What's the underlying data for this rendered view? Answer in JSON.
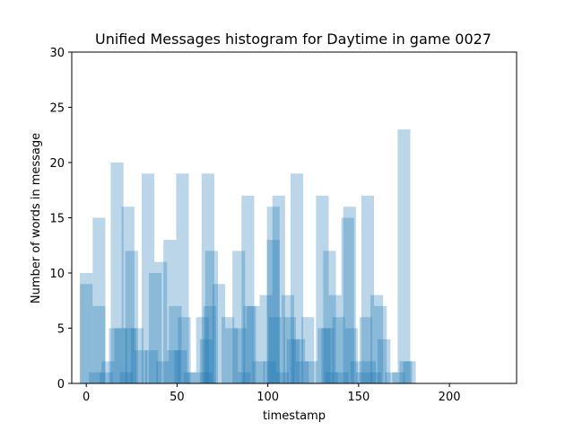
{
  "chart_data": {
    "type": "bar",
    "title": "Unified Messages histogram for Daytime in game 0027",
    "xlabel": "timestamp",
    "ylabel": "Number of words in message",
    "xlim": [
      -8,
      237
    ],
    "ylim": [
      0,
      30
    ],
    "xticks": [
      0,
      50,
      100,
      150,
      200
    ],
    "yticks": [
      0,
      5,
      10,
      15,
      20,
      25,
      30
    ],
    "bar_color": "#1f77b4",
    "bar_opacity": 0.3,
    "bar_width": 7,
    "bars": [
      {
        "x": 0,
        "y": 10
      },
      {
        "x": 0,
        "y": 9
      },
      {
        "x": 7,
        "y": 15
      },
      {
        "x": 7,
        "y": 7
      },
      {
        "x": 5,
        "y": 1
      },
      {
        "x": 11,
        "y": 1
      },
      {
        "x": 12,
        "y": 2
      },
      {
        "x": 17,
        "y": 20
      },
      {
        "x": 16,
        "y": 5
      },
      {
        "x": 19,
        "y": 5
      },
      {
        "x": 23,
        "y": 16
      },
      {
        "x": 25,
        "y": 12
      },
      {
        "x": 24,
        "y": 5
      },
      {
        "x": 22,
        "y": 1
      },
      {
        "x": 28,
        "y": 5
      },
      {
        "x": 30,
        "y": 3
      },
      {
        "x": 34,
        "y": 19
      },
      {
        "x": 36,
        "y": 3
      },
      {
        "x": 38,
        "y": 10
      },
      {
        "x": 41,
        "y": 11
      },
      {
        "x": 42,
        "y": 2
      },
      {
        "x": 46,
        "y": 13
      },
      {
        "x": 49,
        "y": 7
      },
      {
        "x": 48,
        "y": 3
      },
      {
        "x": 53,
        "y": 19
      },
      {
        "x": 54,
        "y": 6
      },
      {
        "x": 52,
        "y": 3
      },
      {
        "x": 57,
        "y": 1
      },
      {
        "x": 59,
        "y": 1
      },
      {
        "x": 64,
        "y": 6
      },
      {
        "x": 66,
        "y": 4
      },
      {
        "x": 66,
        "y": 1
      },
      {
        "x": 67,
        "y": 19
      },
      {
        "x": 69,
        "y": 12
      },
      {
        "x": 68,
        "y": 7
      },
      {
        "x": 73,
        "y": 9
      },
      {
        "x": 78,
        "y": 6
      },
      {
        "x": 80,
        "y": 5
      },
      {
        "x": 84,
        "y": 12
      },
      {
        "x": 85,
        "y": 5
      },
      {
        "x": 87,
        "y": 1
      },
      {
        "x": 89,
        "y": 17
      },
      {
        "x": 90,
        "y": 7
      },
      {
        "x": 92,
        "y": 7
      },
      {
        "x": 95,
        "y": 2
      },
      {
        "x": 99,
        "y": 8
      },
      {
        "x": 101,
        "y": 2
      },
      {
        "x": 103,
        "y": 16
      },
      {
        "x": 103,
        "y": 13
      },
      {
        "x": 104,
        "y": 6
      },
      {
        "x": 106,
        "y": 17
      },
      {
        "x": 108,
        "y": 1
      },
      {
        "x": 111,
        "y": 8
      },
      {
        "x": 112,
        "y": 6
      },
      {
        "x": 114,
        "y": 4
      },
      {
        "x": 116,
        "y": 19
      },
      {
        "x": 117,
        "y": 4
      },
      {
        "x": 119,
        "y": 2
      },
      {
        "x": 122,
        "y": 6
      },
      {
        "x": 124,
        "y": 2
      },
      {
        "x": 130,
        "y": 17
      },
      {
        "x": 131,
        "y": 5
      },
      {
        "x": 133,
        "y": 5
      },
      {
        "x": 134,
        "y": 12
      },
      {
        "x": 137,
        "y": 8
      },
      {
        "x": 135,
        "y": 1
      },
      {
        "x": 139,
        "y": 6
      },
      {
        "x": 141,
        "y": 1
      },
      {
        "x": 144,
        "y": 15
      },
      {
        "x": 145,
        "y": 16
      },
      {
        "x": 146,
        "y": 5
      },
      {
        "x": 149,
        "y": 2
      },
      {
        "x": 152,
        "y": 1
      },
      {
        "x": 155,
        "y": 17
      },
      {
        "x": 154,
        "y": 6
      },
      {
        "x": 156,
        "y": 2
      },
      {
        "x": 160,
        "y": 8
      },
      {
        "x": 162,
        "y": 7
      },
      {
        "x": 159,
        "y": 1
      },
      {
        "x": 164,
        "y": 4
      },
      {
        "x": 168,
        "y": 1
      },
      {
        "x": 172,
        "y": 1
      },
      {
        "x": 175,
        "y": 23
      },
      {
        "x": 176,
        "y": 2
      },
      {
        "x": 178,
        "y": 2
      }
    ]
  }
}
